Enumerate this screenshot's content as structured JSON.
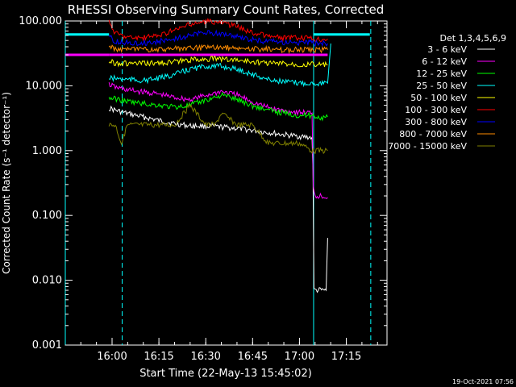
{
  "chart_data": {
    "type": "line",
    "title": "RHESSI Observing Summary Count Rates, Corrected",
    "xlabel": "Start Time (22-May-13 15:45:02)",
    "ylabel": "Corrected Count Rate (s⁻¹ detector⁻¹)",
    "x_unit": "minutes after 15:45:02",
    "xlim": [
      0,
      103
    ],
    "ylim": [
      0.001,
      100
    ],
    "y_scale": "log",
    "x_ticks": [
      {
        "x": 14.97,
        "label": "16:00"
      },
      {
        "x": 29.97,
        "label": "16:15"
      },
      {
        "x": 44.97,
        "label": "16:30"
      },
      {
        "x": 59.97,
        "label": "16:45"
      },
      {
        "x": 74.97,
        "label": "17:00"
      },
      {
        "x": 89.97,
        "label": "17:15"
      }
    ],
    "y_ticks": [
      {
        "y": 0.001,
        "label": "0.001"
      },
      {
        "y": 0.01,
        "label": "0.010"
      },
      {
        "y": 0.1,
        "label": "0.100"
      },
      {
        "y": 1,
        "label": "1.000"
      },
      {
        "y": 10,
        "label": "10.000"
      },
      {
        "y": 100,
        "label": "100.000"
      }
    ],
    "legend_title": "Det 1,3,4,5,6,9",
    "legend_position": "right",
    "vlines": [
      {
        "x": 0,
        "color": "#00ffff"
      },
      {
        "x": 18.2,
        "color": "#00ffff",
        "dashed": true
      },
      {
        "x": 79.5,
        "color": "#00ffff"
      },
      {
        "x": 97.8,
        "color": "#00ffff",
        "dashed": true
      }
    ],
    "hlines": [
      {
        "y": 62,
        "x0": 0,
        "x1": 14,
        "color": "#00ffff"
      },
      {
        "y": 62,
        "x0": 79.5,
        "x1": 97.5,
        "color": "#00ffff"
      },
      {
        "y": 30,
        "x0": 0,
        "x1": 14,
        "color": "#ff00ff"
      },
      {
        "y": 30,
        "x0": 14,
        "x1": 84,
        "color": "#ff00ff"
      }
    ],
    "series": [
      {
        "name": "3 - 6 keV",
        "color": "#ffffff",
        "x": [
          14,
          16,
          20,
          25,
          30,
          35,
          40,
          45,
          50,
          55,
          60,
          65,
          70,
          75,
          78,
          79,
          79.3,
          79.6,
          80,
          82,
          83.5,
          84
        ],
        "y": [
          4.5,
          4.2,
          3.7,
          3.3,
          2.9,
          2.6,
          2.4,
          2.4,
          2.3,
          2.2,
          2.05,
          1.9,
          1.75,
          1.65,
          1.6,
          1.6,
          0.5,
          0.007,
          0.007,
          0.007,
          0.007,
          0.045
        ]
      },
      {
        "name": "6 - 12 keV",
        "color": "#ff00ff",
        "x": [
          14,
          16,
          20,
          25,
          30,
          35,
          40,
          45,
          50,
          55,
          60,
          65,
          70,
          75,
          79,
          79.4,
          80,
          82,
          84
        ],
        "y": [
          10.5,
          9.5,
          8.6,
          8.0,
          7.4,
          6.6,
          6.1,
          7.1,
          8.2,
          7.2,
          5.6,
          4.6,
          4.1,
          3.9,
          3.8,
          0.3,
          0.2,
          0.2,
          0.19
        ]
      },
      {
        "name": "12 - 25 keV",
        "color": "#00ff00",
        "x": [
          14,
          16,
          20,
          25,
          30,
          35,
          40,
          45,
          50,
          55,
          60,
          65,
          70,
          75,
          79,
          80,
          82,
          84
        ],
        "y": [
          6.5,
          6.3,
          5.7,
          5.3,
          5.0,
          4.7,
          5.0,
          6.0,
          7.2,
          6.2,
          4.9,
          4.2,
          3.8,
          3.5,
          3.5,
          3.4,
          3.2,
          3.3
        ]
      },
      {
        "name": "25 - 50 keV",
        "color": "#00ffff",
        "x": [
          14,
          16,
          20,
          25,
          30,
          35,
          40,
          45,
          50,
          55,
          60,
          65,
          70,
          75,
          79,
          80,
          84,
          85
        ],
        "y": [
          13,
          13,
          12.5,
          12,
          13,
          15,
          18,
          20,
          20,
          18,
          15,
          12.5,
          11.5,
          11,
          11,
          11,
          11,
          45
        ]
      },
      {
        "name": "50 - 100 keV",
        "color": "#ffff00",
        "x": [
          14,
          16,
          20,
          25,
          30,
          35,
          40,
          45,
          50,
          55,
          60,
          65,
          70,
          75,
          79,
          80,
          84
        ],
        "y": [
          24,
          22.5,
          22,
          22,
          22.5,
          23.5,
          25,
          26,
          26,
          25,
          23.5,
          22.5,
          22,
          21.5,
          21.5,
          21.5,
          21
        ]
      },
      {
        "name": "100 - 300 keV",
        "color": "#ff0000",
        "x": [
          14,
          16,
          20,
          25,
          30,
          35,
          40,
          45,
          50,
          55,
          60,
          65,
          70,
          75,
          79,
          80,
          84
        ],
        "y": [
          95,
          65,
          56,
          55,
          60,
          72,
          88,
          98,
          95,
          82,
          66,
          58,
          55,
          54,
          54,
          53,
          53
        ]
      },
      {
        "name": "300 - 800 keV",
        "color": "#0000ff",
        "x": [
          14,
          16,
          20,
          25,
          30,
          35,
          40,
          45,
          50,
          55,
          60,
          65,
          70,
          75,
          79,
          80,
          84
        ],
        "y": [
          58,
          48,
          46,
          46,
          48,
          53,
          60,
          66,
          64,
          57,
          51,
          48,
          47,
          46,
          46,
          45,
          45
        ]
      },
      {
        "name": "800 - 7000 keV",
        "color": "#ff8c00",
        "x": [
          14,
          16,
          20,
          25,
          30,
          35,
          40,
          45,
          50,
          55,
          60,
          65,
          70,
          75,
          79,
          80,
          84
        ],
        "y": [
          40,
          37,
          36,
          36,
          36.5,
          37,
          38,
          39,
          39,
          38,
          37,
          36.5,
          36,
          36,
          36,
          36,
          36
        ]
      },
      {
        "name": "7000 - 15000 keV",
        "color": "#808000",
        "x": [
          14,
          16,
          18,
          20,
          25,
          30,
          35,
          38,
          40,
          42,
          45,
          48,
          50,
          55,
          60,
          65,
          70,
          75,
          79,
          80,
          84
        ],
        "y": [
          2.5,
          2.5,
          1.3,
          2.5,
          2.5,
          2.5,
          2.5,
          3.8,
          5.0,
          3.8,
          2.5,
          2.5,
          3.8,
          2.5,
          2.5,
          1.3,
          1.3,
          1.3,
          1.0,
          1.0,
          1.0
        ]
      }
    ]
  },
  "footer_timestamp": "19-Oct-2021 07:56"
}
